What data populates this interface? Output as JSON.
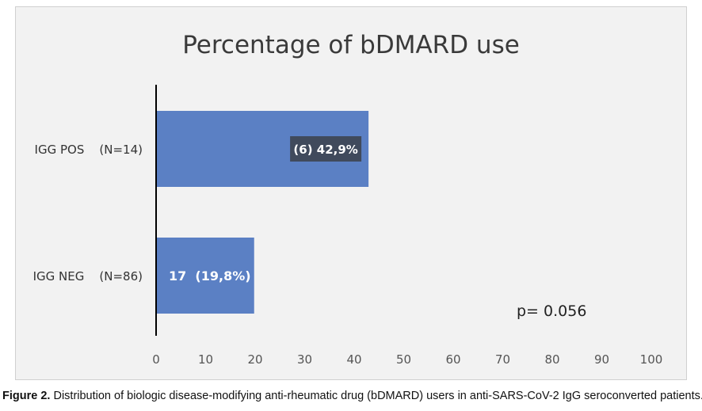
{
  "chart_data": {
    "type": "bar",
    "orientation": "horizontal",
    "title": "Percentage of bDMARD use",
    "categories": [
      "IGG POS    (N=14)",
      "IGG NEG    (N=86)"
    ],
    "values": [
      42.9,
      19.8
    ],
    "data_labels": [
      "(6) 42,9%",
      "17  (19,8%)"
    ],
    "xlim": [
      0,
      100
    ],
    "x_ticks": [
      "0",
      "10",
      "20",
      "30",
      "40",
      "50",
      "60",
      "70",
      "80",
      "90",
      "100"
    ],
    "annotation": "p= 0.056",
    "grid": false,
    "legend": "none",
    "bar_color": "#5b80c4"
  },
  "caption": {
    "label": "Figure 2.",
    "text": " Distribution of biologic disease-modifying anti-rheumatic drug (bDMARD) users in anti-SARS-CoV-2 IgG seroconverted patients."
  }
}
